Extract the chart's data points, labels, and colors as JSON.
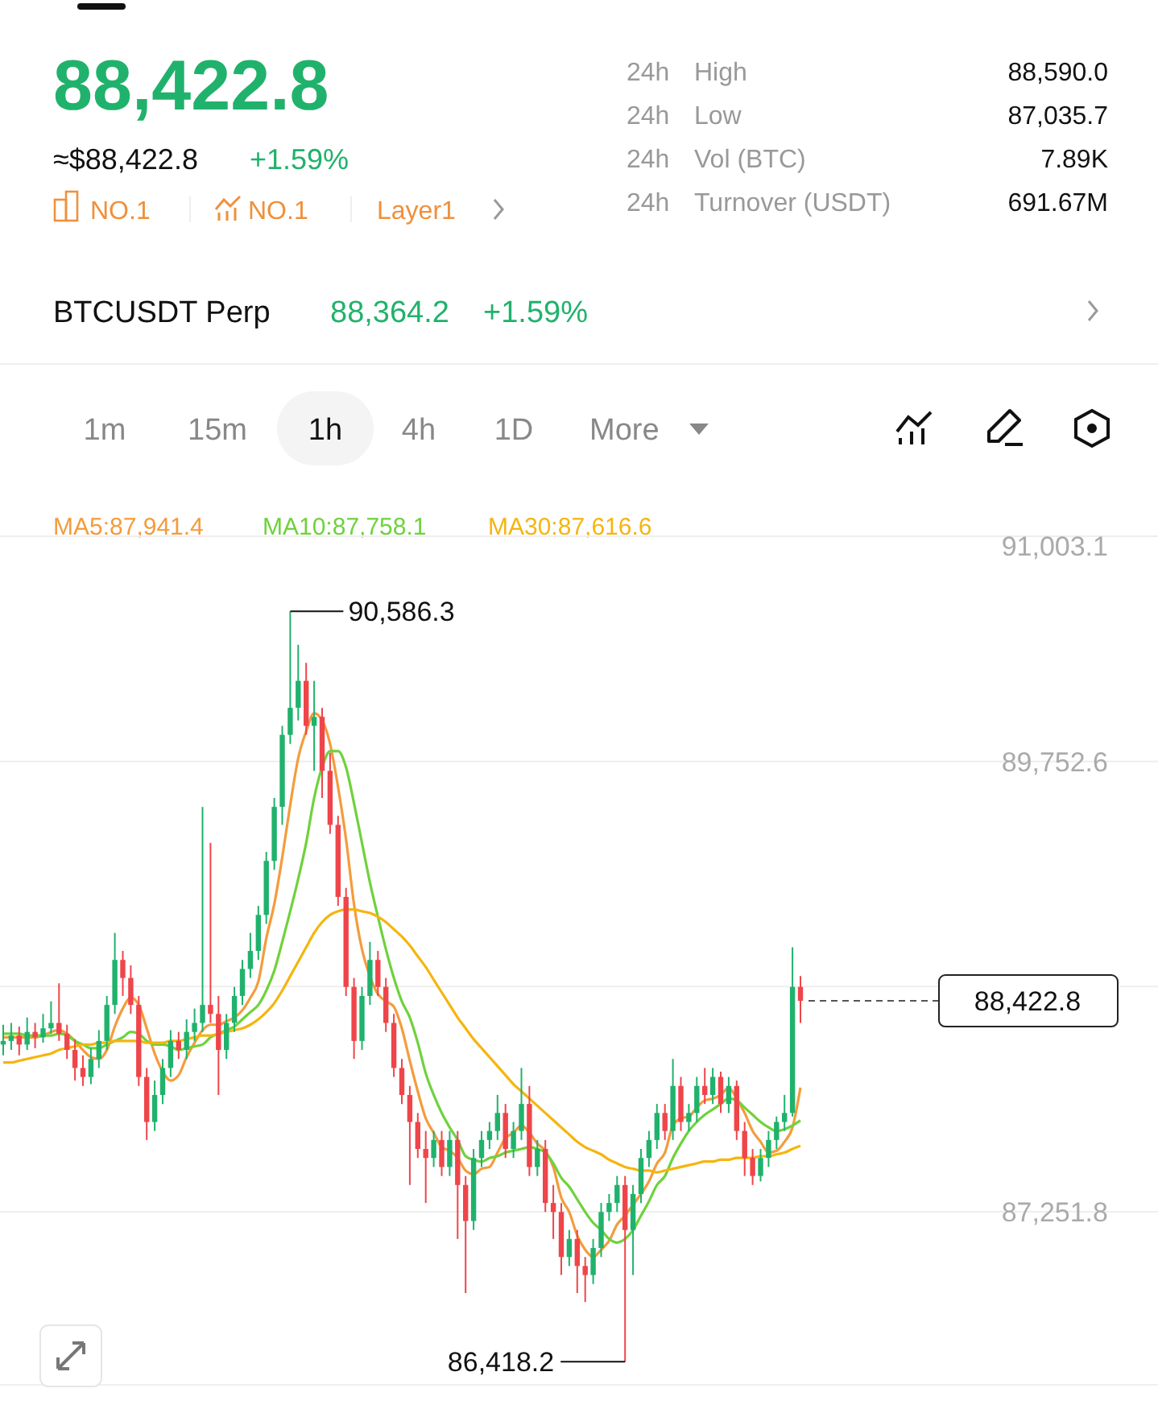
{
  "chart_data": {
    "type": "candlestick",
    "title": "88,422.8",
    "categories": [
      null,
      null,
      null,
      null,
      null,
      null,
      null,
      null,
      null,
      null,
      null,
      null,
      null,
      null,
      null,
      null,
      null,
      null,
      null,
      null,
      null,
      null,
      null,
      null,
      null,
      null,
      null,
      null,
      null,
      null,
      null,
      null,
      null,
      null,
      null,
      null,
      null,
      null,
      null,
      null,
      null,
      null,
      null,
      null,
      null,
      null,
      null,
      null,
      null,
      null,
      null,
      null,
      null,
      null,
      null,
      null,
      null,
      null,
      null,
      null,
      null,
      null,
      null,
      null,
      null,
      null,
      null,
      null,
      null,
      null,
      null,
      null,
      null,
      null,
      null,
      null,
      null,
      null,
      null,
      null,
      null,
      null,
      null,
      null,
      null,
      null,
      null,
      null,
      null,
      null,
      null,
      null,
      null,
      null,
      null,
      null,
      null,
      null,
      null,
      null,
      null
    ],
    "ohlc": [
      [
        88180,
        88290,
        88120,
        88200
      ],
      [
        88200,
        88300,
        88150,
        88230
      ],
      [
        88230,
        88280,
        88120,
        88180
      ],
      [
        88180,
        88330,
        88150,
        88250
      ],
      [
        88250,
        88300,
        88160,
        88220
      ],
      [
        88220,
        88350,
        88190,
        88270
      ],
      [
        88270,
        88420,
        88240,
        88300
      ],
      [
        88300,
        88520,
        88200,
        88240
      ],
      [
        88240,
        88290,
        88100,
        88150
      ],
      [
        88150,
        88210,
        87980,
        88050
      ],
      [
        88050,
        88120,
        87950,
        88000
      ],
      [
        88000,
        88160,
        87960,
        88100
      ],
      [
        88100,
        88260,
        88050,
        88200
      ],
      [
        88200,
        88450,
        88150,
        88400
      ],
      [
        88400,
        88800,
        88350,
        88650
      ],
      [
        88650,
        88700,
        88450,
        88550
      ],
      [
        88550,
        88620,
        88350,
        88400
      ],
      [
        88400,
        88450,
        87950,
        88000
      ],
      [
        88000,
        88050,
        87650,
        87750
      ],
      [
        87750,
        87980,
        87700,
        87900
      ],
      [
        87900,
        88100,
        87850,
        88050
      ],
      [
        88050,
        88260,
        88000,
        88200
      ],
      [
        88200,
        88250,
        88100,
        88150
      ],
      [
        88150,
        88320,
        88100,
        88250
      ],
      [
        88250,
        88380,
        88200,
        88300
      ],
      [
        88300,
        89500,
        88250,
        88400
      ],
      [
        88400,
        89300,
        88300,
        88350
      ],
      [
        88350,
        88450,
        87900,
        88150
      ],
      [
        88150,
        88350,
        88100,
        88300
      ],
      [
        88300,
        88500,
        88250,
        88450
      ],
      [
        88450,
        88650,
        88400,
        88600
      ],
      [
        88600,
        88800,
        88550,
        88700
      ],
      [
        88700,
        88950,
        88650,
        88900
      ],
      [
        88900,
        89250,
        88850,
        89200
      ],
      [
        89200,
        89550,
        89150,
        89500
      ],
      [
        89500,
        89950,
        89400,
        89900
      ],
      [
        89900,
        90586.3,
        89850,
        90050
      ],
      [
        90050,
        90400,
        89980,
        90200
      ],
      [
        90200,
        90300,
        89900,
        89950
      ],
      [
        89950,
        90200,
        89700,
        90000
      ],
      [
        90000,
        90050,
        89550,
        89700
      ],
      [
        89700,
        89800,
        89350,
        89400
      ],
      [
        89400,
        89450,
        88950,
        89000
      ],
      [
        89000,
        89050,
        88450,
        88500
      ],
      [
        88500,
        88550,
        88100,
        88200
      ],
      [
        88200,
        88500,
        88150,
        88450
      ],
      [
        88450,
        88750,
        88400,
        88650
      ],
      [
        88650,
        88700,
        88450,
        88500
      ],
      [
        88500,
        88550,
        88250,
        88300
      ],
      [
        88300,
        88350,
        88000,
        88050
      ],
      [
        88050,
        88100,
        87850,
        87900
      ],
      [
        87900,
        87950,
        87400,
        87750
      ],
      [
        87750,
        87800,
        87550,
        87600
      ],
      [
        87600,
        87700,
        87300,
        87550
      ],
      [
        87550,
        87700,
        87500,
        87650
      ],
      [
        87650,
        87700,
        87450,
        87500
      ],
      [
        87500,
        87700,
        87450,
        87650
      ],
      [
        87650,
        87700,
        87100,
        87400
      ],
      [
        87400,
        87450,
        86800,
        87200
      ],
      [
        87200,
        87600,
        87150,
        87550
      ],
      [
        87550,
        87700,
        87500,
        87650
      ],
      [
        87650,
        87750,
        87600,
        87700
      ],
      [
        87700,
        87900,
        87650,
        87800
      ],
      [
        87800,
        87850,
        87550,
        87600
      ],
      [
        87600,
        87750,
        87550,
        87700
      ],
      [
        87700,
        88050,
        87650,
        87850
      ],
      [
        87850,
        87950,
        87450,
        87500
      ],
      [
        87500,
        87650,
        87450,
        87600
      ],
      [
        87600,
        87650,
        87250,
        87300
      ],
      [
        87300,
        87400,
        87100,
        87250
      ],
      [
        87250,
        87300,
        86900,
        87000
      ],
      [
        87000,
        87150,
        86950,
        87100
      ],
      [
        87100,
        87150,
        86800,
        86950
      ],
      [
        86950,
        87000,
        86750,
        86900
      ],
      [
        86900,
        87100,
        86850,
        87050
      ],
      [
        87050,
        87300,
        87000,
        87250
      ],
      [
        87250,
        87350,
        87200,
        87300
      ],
      [
        87300,
        87450,
        87250,
        87400
      ],
      [
        87400,
        87450,
        86418.2,
        87150
      ],
      [
        87150,
        87400,
        86900,
        87350
      ],
      [
        87350,
        87600,
        87300,
        87550
      ],
      [
        87550,
        87700,
        87500,
        87650
      ],
      [
        87650,
        87850,
        87600,
        87800
      ],
      [
        87800,
        87850,
        87650,
        87700
      ],
      [
        87700,
        88100,
        87650,
        87950
      ],
      [
        87950,
        88000,
        87700,
        87750
      ],
      [
        87750,
        87850,
        87700,
        87800
      ],
      [
        87800,
        88000,
        87750,
        87950
      ],
      [
        87950,
        88050,
        87850,
        87900
      ],
      [
        87900,
        88050,
        87850,
        88000
      ],
      [
        88000,
        88030,
        87800,
        87850
      ],
      [
        87850,
        88000,
        87800,
        87950
      ],
      [
        87950,
        87980,
        87650,
        87700
      ],
      [
        87700,
        87750,
        87450,
        87550
      ],
      [
        87550,
        87600,
        87400,
        87450
      ],
      [
        87450,
        87600,
        87420,
        87550
      ],
      [
        87550,
        87700,
        87500,
        87650
      ],
      [
        87650,
        87780,
        87600,
        87750
      ],
      [
        87750,
        87900,
        87700,
        87800
      ],
      [
        87800,
        88720,
        87780,
        88500
      ],
      [
        88500,
        88560,
        88300,
        88422.8
      ]
    ],
    "series": [
      {
        "type": "line",
        "name": "MA5:87,941.4",
        "color": "#f39c3d",
        "values": [
          88220,
          88220,
          88220,
          88220,
          88220,
          88230,
          88250,
          88260,
          88240,
          88200,
          88150,
          88110,
          88100,
          88150,
          88280,
          88380,
          88440,
          88400,
          88270,
          88130,
          88030,
          87980,
          88010,
          88110,
          88190,
          88260,
          88290,
          88290,
          88310,
          88330,
          88370,
          88440,
          88530,
          88770,
          88960,
          89220,
          89510,
          89770,
          89920,
          90020,
          89980,
          89850,
          89610,
          89320,
          88960,
          88710,
          88560,
          88460,
          88420,
          88390,
          88270,
          88090,
          87920,
          87770,
          87690,
          87610,
          87590,
          87550,
          87480,
          87460,
          87490,
          87500,
          87580,
          87660,
          87690,
          87730,
          87690,
          87630,
          87590,
          87500,
          87330,
          87250,
          87120,
          87040,
          87000,
          87040,
          87090,
          87180,
          87230,
          87290,
          87350,
          87420,
          87520,
          87580,
          87730,
          87770,
          87780,
          87830,
          87870,
          87880,
          87900,
          87940,
          87880,
          87800,
          87700,
          87640,
          87580,
          87590,
          87640,
          87720,
          87941.4
        ]
      },
      {
        "type": "line",
        "name": "MA10:87,758.1",
        "color": "#6fd23c",
        "values": [
          88240,
          88240,
          88240,
          88230,
          88230,
          88230,
          88230,
          88240,
          88230,
          88200,
          88180,
          88160,
          88160,
          88180,
          88200,
          88220,
          88250,
          88240,
          88200,
          88180,
          88180,
          88170,
          88150,
          88160,
          88170,
          88180,
          88220,
          88240,
          88260,
          88280,
          88320,
          88360,
          88400,
          88480,
          88590,
          88750,
          88920,
          89100,
          89300,
          89550,
          89720,
          89810,
          89810,
          89720,
          89520,
          89300,
          89080,
          88890,
          88710,
          88550,
          88420,
          88330,
          88190,
          88020,
          87900,
          87800,
          87720,
          87650,
          87560,
          87540,
          87530,
          87550,
          87560,
          87580,
          87590,
          87600,
          87610,
          87600,
          87580,
          87520,
          87440,
          87390,
          87320,
          87250,
          87190,
          87150,
          87100,
          87080,
          87100,
          87150,
          87230,
          87310,
          87400,
          87450,
          87550,
          87630,
          87700,
          87750,
          87790,
          87820,
          87850,
          87880,
          87870,
          87830,
          87790,
          87750,
          87720,
          87700,
          87710,
          87730,
          87758.1
        ]
      },
      {
        "type": "line",
        "name": "MA30:87,616.6",
        "color": "#f5b50f",
        "values": [
          88080,
          88080,
          88090,
          88100,
          88110,
          88120,
          88130,
          88150,
          88160,
          88170,
          88180,
          88180,
          88190,
          88190,
          88200,
          88200,
          88200,
          88200,
          88190,
          88190,
          88190,
          88200,
          88200,
          88210,
          88220,
          88230,
          88230,
          88240,
          88250,
          88260,
          88270,
          88290,
          88320,
          88360,
          88410,
          88480,
          88560,
          88640,
          88720,
          88800,
          88860,
          88900,
          88920,
          88930,
          88930,
          88920,
          88910,
          88890,
          88860,
          88820,
          88780,
          88730,
          88670,
          88610,
          88540,
          88470,
          88400,
          88330,
          88270,
          88210,
          88160,
          88110,
          88060,
          88010,
          87960,
          87920,
          87880,
          87840,
          87800,
          87760,
          87720,
          87680,
          87640,
          87610,
          87590,
          87570,
          87540,
          87520,
          87500,
          87490,
          87480,
          87480,
          87470,
          87480,
          87490,
          87500,
          87510,
          87520,
          87530,
          87530,
          87540,
          87540,
          87550,
          87550,
          87550,
          87560,
          87560,
          87570,
          87580,
          87600,
          87616.6
        ]
      }
    ],
    "ylim": [
      86290,
      91003.1
    ],
    "yticks": [
      {
        "value": 91003.1,
        "label": "91,003.1"
      },
      {
        "value": 89752.6,
        "label": "89,752.6"
      },
      {
        "value": 88502.2,
        "label": null
      },
      {
        "value": 87251.8,
        "label": "87,251.8"
      }
    ],
    "grid": "y",
    "tick_labels": "y",
    "legend": "top",
    "ref_lines": [
      {
        "axis": "y",
        "value": 88422.8,
        "label": "88,422.8",
        "line_style": "dashed"
      }
    ],
    "annotations": [
      "≈$88,422.8",
      "+1.59%",
      "NO.1",
      "NO.1",
      "Layer1",
      "24h",
      "High",
      "88,590.0",
      "24h",
      "Low",
      "87,035.7",
      "24h",
      "Vol (BTC)",
      "7.89K",
      "24h",
      "Turnover (USDT)",
      "691.67M",
      "BTCUSDT Perp",
      "88,364.2",
      "+1.59%",
      "1m",
      "15m",
      "1h",
      "4h",
      "1D",
      "More",
      "90,586.3",
      "86,418.2"
    ]
  }
}
